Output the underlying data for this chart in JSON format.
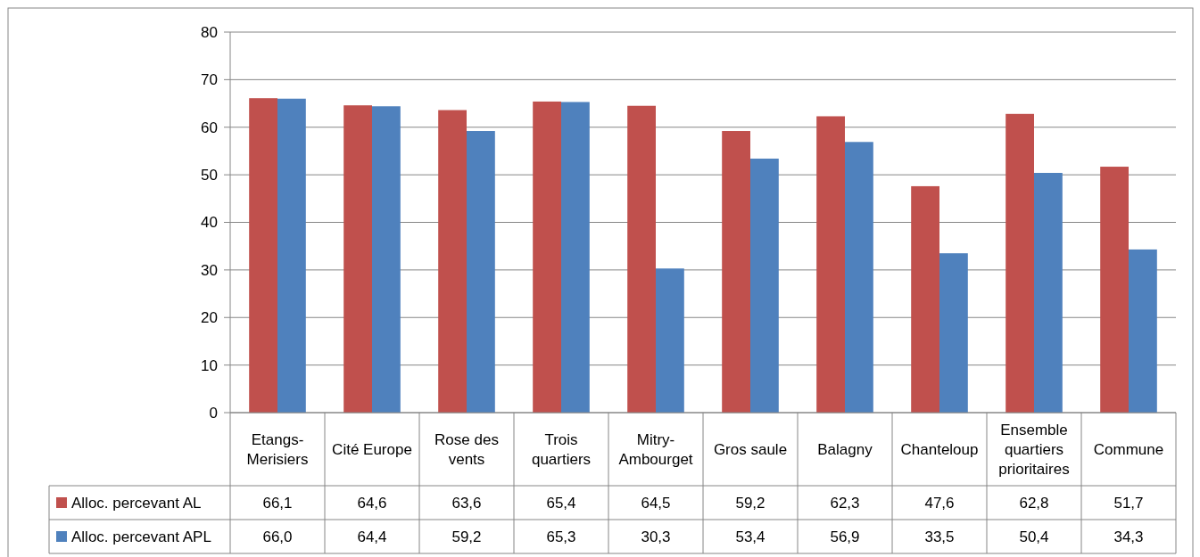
{
  "chart_data": {
    "type": "bar",
    "categories": [
      "Etangs-Merisiers",
      "Cité Europe",
      "Rose des vents",
      "Trois quartiers",
      "Mitry-Ambourget",
      "Gros saule",
      "Balagny",
      "Chanteloup",
      "Ensemble quartiers prioritaires",
      "Commune"
    ],
    "series": [
      {
        "name": "Alloc. percevant AL",
        "color": "#c0504d",
        "values": [
          66.1,
          64.6,
          63.6,
          65.4,
          64.5,
          59.2,
          62.3,
          47.6,
          62.8,
          51.7
        ],
        "value_labels": [
          "66,1",
          "64,6",
          "63,6",
          "65,4",
          "64,5",
          "59,2",
          "62,3",
          "47,6",
          "62,8",
          "51,7"
        ]
      },
      {
        "name": "Alloc. percevant APL",
        "color": "#4f81bd",
        "values": [
          66.0,
          64.4,
          59.2,
          65.3,
          30.3,
          53.4,
          56.9,
          33.5,
          50.4,
          34.3
        ],
        "value_labels": [
          "66,0",
          "64,4",
          "59,2",
          "65,3",
          "30,3",
          "53,4",
          "56,9",
          "33,5",
          "50,4",
          "34,3"
        ]
      }
    ],
    "ylim": [
      0,
      80
    ],
    "yticks": [
      0,
      10,
      20,
      30,
      40,
      50,
      60,
      70,
      80
    ],
    "grid": "y",
    "legend": "bottom left"
  }
}
